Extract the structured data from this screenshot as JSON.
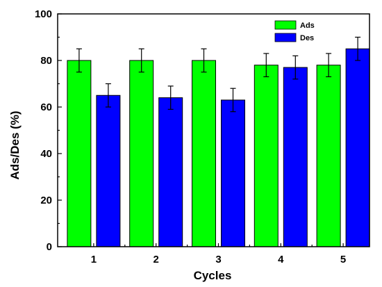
{
  "chart_data": {
    "type": "bar",
    "xlabel": "Cycles",
    "ylabel": "Ads/Des (%)",
    "categories": [
      "1",
      "2",
      "3",
      "4",
      "5"
    ],
    "ylim": [
      0,
      100
    ],
    "yticks": [
      0,
      20,
      40,
      60,
      80,
      100
    ],
    "grid": false,
    "legend_position": "top-right",
    "series": [
      {
        "name": "Ads",
        "color": "#00ff00",
        "values": [
          80,
          80,
          80,
          78,
          78
        ],
        "errors": [
          5,
          5,
          5,
          5,
          5
        ]
      },
      {
        "name": "Des",
        "color": "#0000ff",
        "values": [
          65,
          64,
          63,
          77,
          85
        ],
        "errors": [
          5,
          5,
          5,
          5,
          5
        ]
      }
    ]
  }
}
